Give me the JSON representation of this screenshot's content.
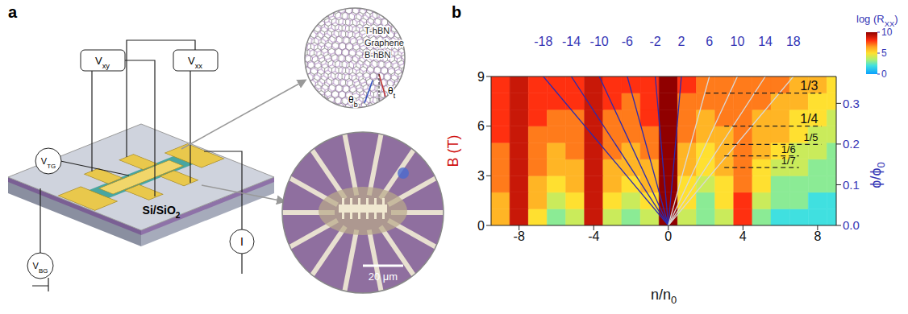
{
  "panel_a": {
    "label": "a",
    "inset_layers": [
      "T-hBN",
      "Graphene",
      "B-hBN"
    ],
    "angles": [
      [
        {
          "t": "θ"
        },
        {
          "t": "t",
          "sub": true
        }
      ],
      [
        {
          "t": "θ"
        },
        {
          "t": "b",
          "sub": true
        }
      ]
    ],
    "probes": {
      "vxy": [
        {
          "t": "V"
        },
        {
          "t": "xy",
          "sub": true
        }
      ],
      "vxx": [
        {
          "t": "V"
        },
        {
          "t": "xx",
          "sub": true
        }
      ],
      "vtg": [
        {
          "t": "V"
        },
        {
          "t": "TG",
          "sub": true
        }
      ],
      "vbg": [
        {
          "t": "V"
        },
        {
          "t": "BG",
          "sub": true
        }
      ],
      "current": [
        {
          "t": "I"
        }
      ]
    },
    "substrate": [
      {
        "t": "Si/SiO"
      },
      {
        "t": "2",
        "sub": true
      }
    ],
    "scale_bar": "20 μm"
  },
  "chart_data": {
    "type": "heatmap",
    "panel_label": "b",
    "xlabel": [
      {
        "t": "n/n"
      },
      {
        "t": "0",
        "sub": true
      }
    ],
    "ylabel": "B (T)",
    "y2label": [
      {
        "t": "ϕ/ϕ"
      },
      {
        "t": "0",
        "sub": true
      }
    ],
    "xlim": [
      -9.5,
      9
    ],
    "xticks": [
      -8,
      -4,
      0,
      4,
      8
    ],
    "ylim": [
      0,
      9
    ],
    "yticks": [
      0,
      3,
      6,
      9
    ],
    "y2lim": [
      0,
      0.366
    ],
    "y2ticks": [
      {
        "value": 0,
        "label": "0.0"
      },
      0.1,
      0.2,
      0.3
    ],
    "x": [
      -9,
      -8,
      -7,
      -6,
      -5,
      -4,
      -3,
      -2,
      -1,
      0,
      1,
      2,
      3,
      4,
      5,
      6,
      7,
      8,
      9
    ],
    "y": [
      0.5,
      1.5,
      2.5,
      3.5,
      4.5,
      5.5,
      6.5,
      7.5,
      8.5
    ],
    "z": [
      [
        6,
        9,
        5,
        3,
        4,
        9,
        4,
        3,
        4,
        10,
        4,
        3,
        4,
        8,
        3,
        2,
        2,
        2,
        2
      ],
      [
        6,
        9,
        6,
        4,
        5,
        9,
        5,
        4,
        5,
        10,
        5,
        3,
        5,
        8,
        4,
        3,
        3,
        2,
        2
      ],
      [
        7,
        9,
        6,
        5,
        6,
        9,
        6,
        5,
        6,
        10,
        5,
        4,
        5,
        7,
        5,
        3,
        3,
        3,
        3
      ],
      [
        7,
        9,
        7,
        6,
        6,
        9,
        6,
        6,
        6,
        10,
        6,
        5,
        6,
        7,
        5,
        4,
        4,
        3,
        3
      ],
      [
        7,
        9,
        7,
        6,
        7,
        9,
        7,
        6,
        7,
        10,
        6,
        5,
        6,
        7,
        6,
        5,
        4,
        4,
        3
      ],
      [
        8,
        9,
        7,
        7,
        7,
        9,
        7,
        7,
        7,
        10,
        7,
        6,
        6,
        7,
        6,
        6,
        5,
        4,
        4
      ],
      [
        8,
        9,
        8,
        7,
        7,
        9,
        7,
        7,
        8,
        10,
        7,
        6,
        7,
        7,
        6,
        6,
        5,
        5,
        4
      ],
      [
        8,
        9,
        8,
        8,
        8,
        9,
        8,
        7,
        8,
        10,
        7,
        7,
        7,
        7,
        7,
        6,
        6,
        5,
        5
      ],
      [
        8,
        9,
        8,
        8,
        8,
        9,
        8,
        8,
        8,
        10,
        8,
        7,
        7,
        7,
        7,
        7,
        6,
        6,
        5
      ]
    ],
    "colorbar": {
      "label": [
        {
          "t": "log (R"
        },
        {
          "t": "XX",
          "sub": true
        },
        {
          "t": ")"
        }
      ],
      "range": [
        0,
        10
      ],
      "ticks": [
        0,
        5,
        10
      ]
    },
    "series": [
      {
        "name": "-18",
        "type": "line",
        "color": "#2b2bb0",
        "x": [
          0,
          -6.7
        ],
        "values": [
          0,
          9
        ]
      },
      {
        "name": "-14",
        "type": "line",
        "color": "#2b2bb0",
        "x": [
          0,
          -5.2
        ],
        "values": [
          0,
          9
        ]
      },
      {
        "name": "-10",
        "type": "line",
        "color": "#2b2bb0",
        "x": [
          0,
          -3.7
        ],
        "values": [
          0,
          9
        ]
      },
      {
        "name": "-6",
        "type": "line",
        "color": "#2b2bb0",
        "x": [
          0,
          -2.2
        ],
        "values": [
          0,
          9
        ]
      },
      {
        "name": "-2",
        "type": "line",
        "color": "#2b2bb0",
        "x": [
          0,
          -0.7
        ],
        "values": [
          0,
          9
        ]
      },
      {
        "name": "2",
        "type": "line",
        "color": "#2b2bb0",
        "x": [
          0,
          0.7
        ],
        "values": [
          0,
          9
        ]
      },
      {
        "name": "6",
        "type": "line",
        "color": "#d9d9d9",
        "x": [
          0,
          2.2
        ],
        "values": [
          0,
          9
        ]
      },
      {
        "name": "10",
        "type": "line",
        "color": "#d9d9d9",
        "x": [
          0,
          3.7
        ],
        "values": [
          0,
          9
        ]
      },
      {
        "name": "14",
        "type": "line",
        "color": "#d9d9d9",
        "x": [
          0,
          5.2
        ],
        "values": [
          0,
          9
        ]
      },
      {
        "name": "18",
        "type": "line",
        "color": "#d9d9d9",
        "x": [
          0,
          6.7
        ],
        "values": [
          0,
          9
        ]
      }
    ],
    "annotations": [
      {
        "text": "1/3",
        "x": [
          2,
          8.2
        ],
        "y": 8.0,
        "line_style": "dashed"
      },
      {
        "text": "1/4",
        "x": [
          3,
          8.2
        ],
        "y": 6.0,
        "line_style": "dashed"
      },
      {
        "text": "1/5",
        "x": [
          3,
          8.2
        ],
        "y": 4.9,
        "line_style": "dashed"
      },
      {
        "text": "1/6",
        "x": [
          3,
          7
        ],
        "y": 4.2,
        "line_style": "dashed"
      },
      {
        "text": "1/7",
        "x": [
          3,
          7
        ],
        "y": 3.5,
        "line_style": "dashed"
      }
    ]
  }
}
